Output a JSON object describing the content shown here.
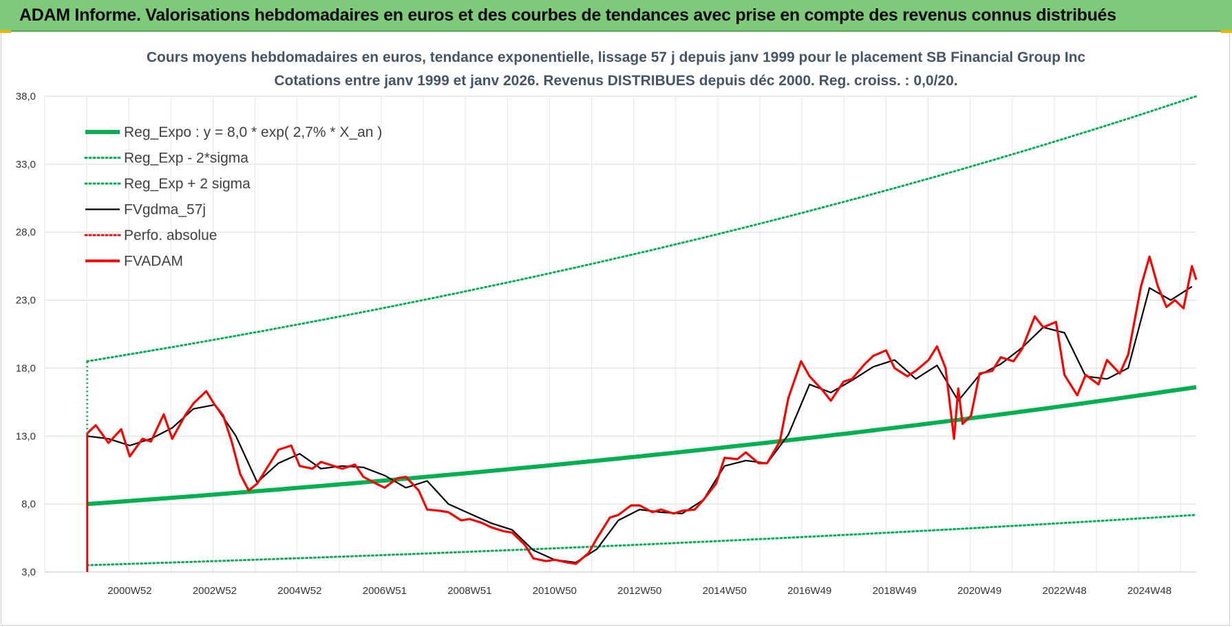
{
  "header": {
    "title": "ADAM Informe. Valorisations hebdomadaires en euros et des courbes de tendances avec prise en compte des revenus connus distribués"
  },
  "chart_data": {
    "type": "line",
    "title": "Cours moyens hebdomadaires en euros, tendance exponentielle, lissage 57 j depuis janv 1999 pour le placement SB Financial Group Inc",
    "subtitle": "Cotations entre janv 1999 et janv 2026. Revenus DISTRIBUES depuis déc 2000. Reg. croiss. : 0,0/20.",
    "xlabel": "",
    "ylabel": "",
    "ylim": [
      3.0,
      38.0
    ],
    "yticks": [
      "3,0",
      "8,0",
      "13,0",
      "18,0",
      "23,0",
      "28,0",
      "33,0",
      "38,0"
    ],
    "xlim": [
      1999.0,
      2026.1
    ],
    "x_tick_labels": [
      {
        "label": "2000W52",
        "x": 2001.0
      },
      {
        "label": "2002W52",
        "x": 2003.0
      },
      {
        "label": "2004W52",
        "x": 2005.0
      },
      {
        "label": "2006W51",
        "x": 2007.0
      },
      {
        "label": "2008W51",
        "x": 2009.0
      },
      {
        "label": "2010W50",
        "x": 2011.0
      },
      {
        "label": "2012W50",
        "x": 2013.0
      },
      {
        "label": "2014W50",
        "x": 2015.0
      },
      {
        "label": "2016W49",
        "x": 2017.0
      },
      {
        "label": "2018W49",
        "x": 2019.0
      },
      {
        "label": "2020W49",
        "x": 2021.0
      },
      {
        "label": "2022W48",
        "x": 2023.0
      },
      {
        "label": "2024W48",
        "x": 2025.0
      }
    ],
    "grid": true,
    "legend_position": "top-left",
    "series": [
      {
        "name": "Reg_Expo : y = 8,0 * exp( 2,7% *  X_an )",
        "color": "#00b050",
        "style": "solid-thick",
        "x": [
          2000.0,
          2026.1
        ],
        "y": [
          8.0,
          16.6
        ]
      },
      {
        "name": "Reg_Exp - 2*sigma",
        "color": "#00b050",
        "style": "dotted",
        "x": [
          2000.0,
          2026.1
        ],
        "y": [
          3.5,
          7.2
        ]
      },
      {
        "name": "Reg_Exp + 2 sigma",
        "color": "#00b050",
        "style": "dotted",
        "x": [
          2000.0,
          2026.1
        ],
        "y": [
          18.5,
          38.0
        ]
      },
      {
        "name": "FVgdma_57j",
        "color": "#000000",
        "style": "solid",
        "x": [
          2000.0,
          2000.5,
          2001.0,
          2001.5,
          2002.0,
          2002.5,
          2003.0,
          2003.5,
          2004.0,
          2004.5,
          2005.0,
          2005.5,
          2006.0,
          2006.5,
          2007.0,
          2007.5,
          2008.0,
          2008.5,
          2009.0,
          2009.5,
          2010.0,
          2010.5,
          2011.0,
          2011.5,
          2012.0,
          2012.5,
          2013.0,
          2013.5,
          2014.0,
          2014.5,
          2015.0,
          2015.5,
          2016.0,
          2016.5,
          2017.0,
          2017.5,
          2018.0,
          2018.5,
          2019.0,
          2019.5,
          2020.0,
          2020.5,
          2021.0,
          2021.5,
          2022.0,
          2022.5,
          2023.0,
          2023.5,
          2024.0,
          2024.5,
          2025.0,
          2025.5,
          2026.0
        ],
        "y": [
          13.0,
          12.8,
          12.3,
          12.8,
          13.6,
          15.0,
          15.3,
          13.0,
          9.6,
          11.0,
          11.7,
          10.6,
          10.8,
          10.7,
          10.1,
          9.2,
          9.7,
          8.0,
          7.3,
          6.6,
          6.1,
          4.6,
          3.9,
          3.7,
          4.7,
          6.8,
          7.6,
          7.4,
          7.3,
          8.3,
          10.8,
          11.2,
          11.0,
          13.1,
          16.8,
          16.2,
          17.1,
          18.1,
          18.6,
          17.2,
          18.2,
          15.6,
          17.5,
          18.3,
          19.5,
          21.0,
          20.6,
          17.4,
          17.2,
          18.0,
          23.9,
          23.0,
          24.0
        ]
      },
      {
        "name": "Perfo. absolue",
        "color": "#ff0000",
        "style": "dotted",
        "x": [],
        "y": []
      },
      {
        "name": "FVADAM",
        "color": "#ff0000",
        "style": "solid-thick",
        "x": [
          2000.0,
          2000.2,
          2000.5,
          2000.8,
          2001.0,
          2001.3,
          2001.5,
          2001.8,
          2002.0,
          2002.3,
          2002.5,
          2002.8,
          2003.0,
          2003.2,
          2003.4,
          2003.6,
          2003.8,
          2004.0,
          2004.3,
          2004.5,
          2004.8,
          2005.0,
          2005.3,
          2005.5,
          2005.8,
          2006.0,
          2006.3,
          2006.5,
          2006.8,
          2007.0,
          2007.3,
          2007.5,
          2007.8,
          2008.0,
          2008.3,
          2008.5,
          2008.8,
          2009.0,
          2009.3,
          2009.5,
          2009.8,
          2010.0,
          2010.3,
          2010.5,
          2010.8,
          2011.0,
          2011.3,
          2011.5,
          2011.8,
          2012.0,
          2012.3,
          2012.5,
          2012.8,
          2013.0,
          2013.3,
          2013.5,
          2013.8,
          2014.0,
          2014.3,
          2014.5,
          2014.8,
          2015.0,
          2015.3,
          2015.5,
          2015.8,
          2016.0,
          2016.3,
          2016.5,
          2016.8,
          2017.0,
          2017.3,
          2017.5,
          2017.8,
          2018.0,
          2018.3,
          2018.5,
          2018.8,
          2019.0,
          2019.3,
          2019.5,
          2019.8,
          2020.0,
          2020.2,
          2020.4,
          2020.5,
          2020.6,
          2020.8,
          2021.0,
          2021.3,
          2021.5,
          2021.8,
          2022.0,
          2022.3,
          2022.5,
          2022.8,
          2023.0,
          2023.3,
          2023.5,
          2023.8,
          2024.0,
          2024.3,
          2024.5,
          2024.8,
          2025.0,
          2025.2,
          2025.4,
          2025.6,
          2025.8,
          2026.0,
          2026.1
        ],
        "y": [
          13.2,
          13.8,
          12.5,
          13.5,
          11.5,
          12.8,
          12.6,
          14.6,
          12.8,
          14.5,
          15.4,
          16.3,
          15.3,
          14.5,
          12.6,
          10.2,
          9.0,
          9.5,
          11.0,
          12.0,
          12.3,
          10.8,
          10.6,
          11.1,
          10.8,
          10.6,
          10.9,
          10.0,
          9.5,
          9.2,
          9.9,
          10.0,
          9.0,
          7.6,
          7.5,
          7.4,
          6.8,
          6.9,
          6.6,
          6.3,
          6.0,
          5.9,
          5.0,
          4.0,
          3.8,
          3.9,
          3.7,
          3.6,
          4.4,
          5.5,
          7.0,
          7.2,
          7.9,
          7.9,
          7.4,
          7.6,
          7.3,
          7.5,
          7.6,
          8.3,
          9.5,
          11.4,
          11.3,
          11.8,
          11.0,
          11.0,
          12.6,
          15.8,
          18.5,
          17.4,
          16.4,
          15.6,
          17.0,
          17.2,
          18.3,
          18.9,
          19.3,
          18.0,
          17.4,
          17.8,
          18.6,
          19.6,
          18.0,
          12.8,
          16.5,
          13.9,
          14.5,
          17.6,
          17.8,
          18.8,
          18.5,
          19.4,
          21.8,
          21.0,
          21.4,
          17.5,
          16.0,
          17.5,
          16.8,
          18.6,
          17.6,
          19.0,
          24.0,
          26.2,
          24.0,
          22.5,
          23.0,
          22.4,
          25.5,
          24.5
        ]
      }
    ]
  }
}
